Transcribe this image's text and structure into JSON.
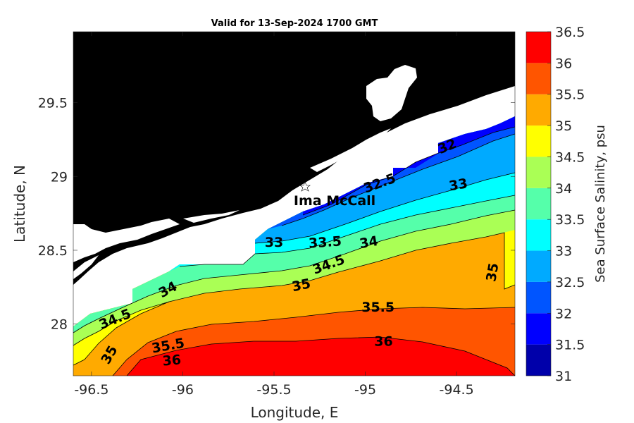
{
  "map": {
    "title": "Valid for 13-Sep-2024 1700 GMT",
    "xlabel": "Longitude, E",
    "ylabel": "Latitude, N",
    "xlim": [
      -96.6,
      -94.18
    ],
    "ylim": [
      27.65,
      29.98
    ],
    "x_ticks": [
      {
        "value": -96.5,
        "label": "-96.5"
      },
      {
        "value": -96,
        "label": "-96"
      },
      {
        "value": -95.5,
        "label": "-95.5"
      },
      {
        "value": -95,
        "label": "-95"
      },
      {
        "value": -94.5,
        "label": "-94.5"
      }
    ],
    "y_ticks": [
      {
        "value": 28,
        "label": "28"
      },
      {
        "value": 28.5,
        "label": "28.5"
      },
      {
        "value": 29,
        "label": "29"
      },
      {
        "value": 29.5,
        "label": "29.5"
      }
    ],
    "land_color": "#000000",
    "station": {
      "label": "Ima McCall",
      "lon": -95.33,
      "lat": 28.94,
      "marker": "star-icon"
    },
    "colorbar": {
      "label": "Sea Surface Salinity, psu",
      "levels": [
        31,
        31.5,
        32,
        32.5,
        33,
        33.5,
        34,
        34.5,
        35,
        35.5,
        36,
        36.5
      ],
      "tick_labels": [
        "31",
        "31.5",
        "32",
        "32.5",
        "33",
        "33.5",
        "34",
        "34.5",
        "35",
        "35.5",
        "36",
        "36.5"
      ],
      "colors": [
        "#0000aa",
        "#0000ff",
        "#0055ff",
        "#00aaff",
        "#00ffff",
        "#55ffaa",
        "#aaff55",
        "#ffff00",
        "#ffaa00",
        "#ff5500",
        "#ff0000"
      ]
    },
    "contour_labels": [
      {
        "text": "32",
        "lon": -94.55,
        "lat": 29.2,
        "angle": -22
      },
      {
        "text": "32.5",
        "lon": -94.92,
        "lat": 28.95,
        "angle": -20
      },
      {
        "text": "33",
        "lon": -94.49,
        "lat": 28.94,
        "angle": -10
      },
      {
        "text": "33",
        "lon": -95.5,
        "lat": 28.55,
        "angle": 0
      },
      {
        "text": "33.5",
        "lon": -95.22,
        "lat": 28.55,
        "angle": -4
      },
      {
        "text": "34",
        "lon": -94.98,
        "lat": 28.55,
        "angle": -10
      },
      {
        "text": "34",
        "lon": -96.08,
        "lat": 28.23,
        "angle": -28
      },
      {
        "text": "34.5",
        "lon": -95.2,
        "lat": 28.4,
        "angle": -20
      },
      {
        "text": "34.5",
        "lon": -96.37,
        "lat": 28.03,
        "angle": -22
      },
      {
        "text": "35",
        "lon": -95.35,
        "lat": 28.26,
        "angle": -12
      },
      {
        "text": "35",
        "lon": -94.3,
        "lat": 28.35,
        "angle": -80
      },
      {
        "text": "35",
        "lon": -96.4,
        "lat": 27.79,
        "angle": -60
      },
      {
        "text": "35.5",
        "lon": -94.93,
        "lat": 28.11,
        "angle": 0
      },
      {
        "text": "35.5",
        "lon": -96.08,
        "lat": 27.85,
        "angle": -10
      },
      {
        "text": "36",
        "lon": -94.9,
        "lat": 27.88,
        "angle": 0
      },
      {
        "text": "36",
        "lon": -96.06,
        "lat": 27.75,
        "angle": -5
      }
    ]
  }
}
